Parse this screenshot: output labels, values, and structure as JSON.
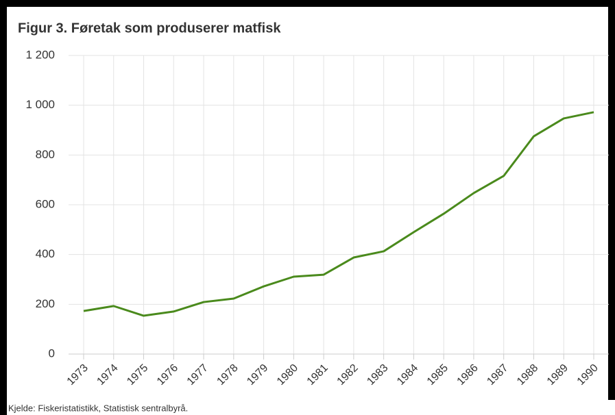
{
  "chart_data": {
    "type": "line",
    "title": "Figur 3. Føretak som produserer matfisk",
    "categories": [
      "1973",
      "1974",
      "1975",
      "1976",
      "1977",
      "1978",
      "1979",
      "1980",
      "1981",
      "1982",
      "1983",
      "1984",
      "1985",
      "1986",
      "1987",
      "1988",
      "1989",
      "1990"
    ],
    "series": [
      {
        "color": "#4a8a1c",
        "values": [
          173,
          193,
          154,
          171,
          209,
          223,
          272,
          311,
          319,
          388,
          413,
          490,
          564,
          647,
          716,
          875,
          947,
          972
        ]
      }
    ],
    "ylim": [
      0,
      1200
    ],
    "yticks": [
      0,
      200,
      400,
      600,
      800,
      {
        "value": 1000,
        "label": "1 000"
      },
      {
        "value": 1200,
        "label": "1 200"
      }
    ],
    "grid": true,
    "source": "Kjelde: Fiskeristatistikk, Statistisk sentralbyrå."
  }
}
